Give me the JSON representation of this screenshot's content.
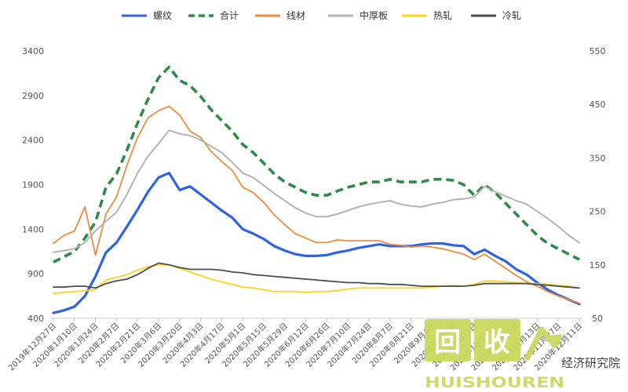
{
  "chart_data": {
    "type": "line",
    "title": "",
    "xlabel": "",
    "ylabel": "",
    "x": [
      "2019年12月27日",
      "2020年1月3日",
      "2020年1月10日",
      "2020年1月17日",
      "2020年1月24日",
      "2020年1月31日",
      "2020年2月7日",
      "2020年2月14日",
      "2020年2月21日",
      "2020年2月28日",
      "2020年3月6日",
      "2020年3月13日",
      "2020年3月20日",
      "2020年3月27日",
      "2020年4月3日",
      "2020年4月10日",
      "2020年4月17日",
      "2020年4月24日",
      "2020年5月1日",
      "2020年5月8日",
      "2020年5月15日",
      "2020年5月22日",
      "2020年5月29日",
      "2020年6月5日",
      "2020年6月12日",
      "2020年6月19日",
      "2020年6月26日",
      "2020年7月3日",
      "2020年7月10日",
      "2020年7月17日",
      "2020年7月24日",
      "2020年7月31日",
      "2020年8月7日",
      "2020年8月14日",
      "2020年8月21日",
      "2020年8月28日",
      "2020年9月4日",
      "2020年9月11日",
      "2020年9月18日",
      "2020年9月25日",
      "2020年10月2日",
      "2020年10月9日",
      "2020年10月16日",
      "2020年10月23日",
      "2020年10月30日",
      "2020年11月6日",
      "2020年11月13日",
      "2020年11月20日",
      "2020年11月27日",
      "2020年12月4日",
      "2020年12月11日"
    ],
    "x_tick_labels": [
      "2019年12月27日",
      "2020年1月10日",
      "2020年1月24日",
      "2020年2月7日",
      "2020年2月21日",
      "2020年3月6日",
      "2020年3月20日",
      "2020年4月3日",
      "2020年4月17日",
      "2020年5月1日",
      "2020年5月15日",
      "2020年5月29日",
      "2020年6月12日",
      "2020年6月26日",
      "2020年7月10日",
      "2020年7月24日",
      "2020年8月7日",
      "2020年8月21日",
      "2020年9月4日",
      "2020年9月18日",
      "2020年10月2日",
      "2020年10月16日",
      "2020年10月30日",
      "2020年11月13日",
      "2020年11月27日",
      "2020年12月11日"
    ],
    "y_left": {
      "ylim": [
        400,
        3400
      ],
      "ticks": [
        400,
        900,
        1400,
        1900,
        2400,
        2900,
        3400
      ]
    },
    "y_right": {
      "ylim": [
        50,
        550
      ],
      "ticks": [
        50,
        150,
        250,
        350,
        450,
        550
      ]
    },
    "legend_position": "top",
    "grid": false,
    "series": [
      {
        "name": "螺纹",
        "axis": "left",
        "color": "#2f63e6",
        "dash": false,
        "width": 3.2,
        "values": [
          460,
          490,
          530,
          650,
          870,
          1140,
          1250,
          1430,
          1620,
          1820,
          1980,
          2030,
          1840,
          1880,
          1790,
          1700,
          1610,
          1530,
          1400,
          1350,
          1290,
          1210,
          1160,
          1120,
          1100,
          1100,
          1110,
          1140,
          1160,
          1190,
          1210,
          1230,
          1210,
          1210,
          1210,
          1230,
          1240,
          1240,
          1220,
          1210,
          1120,
          1170,
          1100,
          1040,
          950,
          890,
          800,
          720,
          660,
          610,
          560
        ]
      },
      {
        "name": "合计",
        "axis": "right",
        "color": "#2e8b47",
        "dash": true,
        "width": 3.6,
        "values": [
          155,
          165,
          175,
          200,
          230,
          295,
          320,
          365,
          415,
          460,
          500,
          520,
          495,
          485,
          465,
          440,
          420,
          400,
          375,
          360,
          340,
          320,
          305,
          295,
          285,
          280,
          280,
          288,
          295,
          300,
          305,
          305,
          310,
          305,
          305,
          305,
          310,
          310,
          308,
          300,
          280,
          300,
          285,
          265,
          245,
          225,
          205,
          190,
          180,
          170,
          160
        ]
      },
      {
        "name": "线材",
        "axis": "left",
        "color": "#f08a3c",
        "dash": false,
        "width": 1.8,
        "values": [
          1240,
          1330,
          1380,
          1650,
          1110,
          1570,
          1760,
          2120,
          2430,
          2650,
          2730,
          2780,
          2680,
          2500,
          2430,
          2270,
          2160,
          2060,
          1870,
          1810,
          1700,
          1560,
          1450,
          1350,
          1300,
          1250,
          1250,
          1280,
          1270,
          1270,
          1270,
          1270,
          1230,
          1220,
          1200,
          1210,
          1200,
          1180,
          1150,
          1120,
          1060,
          1120,
          1040,
          960,
          880,
          810,
          760,
          700,
          650,
          610,
          570
        ]
      },
      {
        "name": "中厚板",
        "axis": "left",
        "color": "#b3b3b3",
        "dash": false,
        "width": 2,
        "values": [
          1140,
          1160,
          1180,
          1250,
          1380,
          1490,
          1590,
          1790,
          2030,
          2220,
          2360,
          2510,
          2470,
          2450,
          2400,
          2330,
          2260,
          2150,
          2030,
          1980,
          1890,
          1800,
          1720,
          1640,
          1580,
          1540,
          1540,
          1570,
          1610,
          1650,
          1680,
          1700,
          1720,
          1680,
          1660,
          1650,
          1680,
          1700,
          1730,
          1740,
          1760,
          1880,
          1820,
          1770,
          1720,
          1680,
          1600,
          1520,
          1430,
          1330,
          1250
        ]
      },
      {
        "name": "热轧",
        "axis": "left",
        "color": "#ffd21e",
        "dash": false,
        "width": 1.8,
        "values": [
          680,
          690,
          700,
          710,
          720,
          830,
          860,
          890,
          940,
          980,
          1000,
          1000,
          960,
          920,
          880,
          840,
          810,
          780,
          750,
          740,
          720,
          700,
          700,
          700,
          690,
          700,
          700,
          710,
          730,
          740,
          740,
          740,
          740,
          740,
          740,
          740,
          750,
          760,
          770,
          760,
          780,
          820,
          820,
          810,
          800,
          790,
          790,
          780,
          770,
          760,
          740
        ]
      },
      {
        "name": "冷轧",
        "axis": "left",
        "color": "#4d4d4d",
        "dash": false,
        "width": 1.8,
        "values": [
          750,
          750,
          760,
          760,
          740,
          790,
          820,
          840,
          890,
          960,
          1020,
          1000,
          970,
          950,
          950,
          950,
          940,
          920,
          910,
          890,
          880,
          870,
          860,
          850,
          840,
          830,
          820,
          810,
          800,
          800,
          790,
          790,
          780,
          780,
          770,
          760,
          760,
          760,
          760,
          760,
          770,
          790,
          790,
          790,
          790,
          790,
          780,
          770,
          760,
          750,
          740
        ]
      }
    ]
  },
  "watermark": {
    "chinese": "回收",
    "latin": "HUISHOUREN",
    "tail_text": "经济研究院",
    "icon": "recycle-arrow-icon",
    "color": "#c8d95a"
  }
}
